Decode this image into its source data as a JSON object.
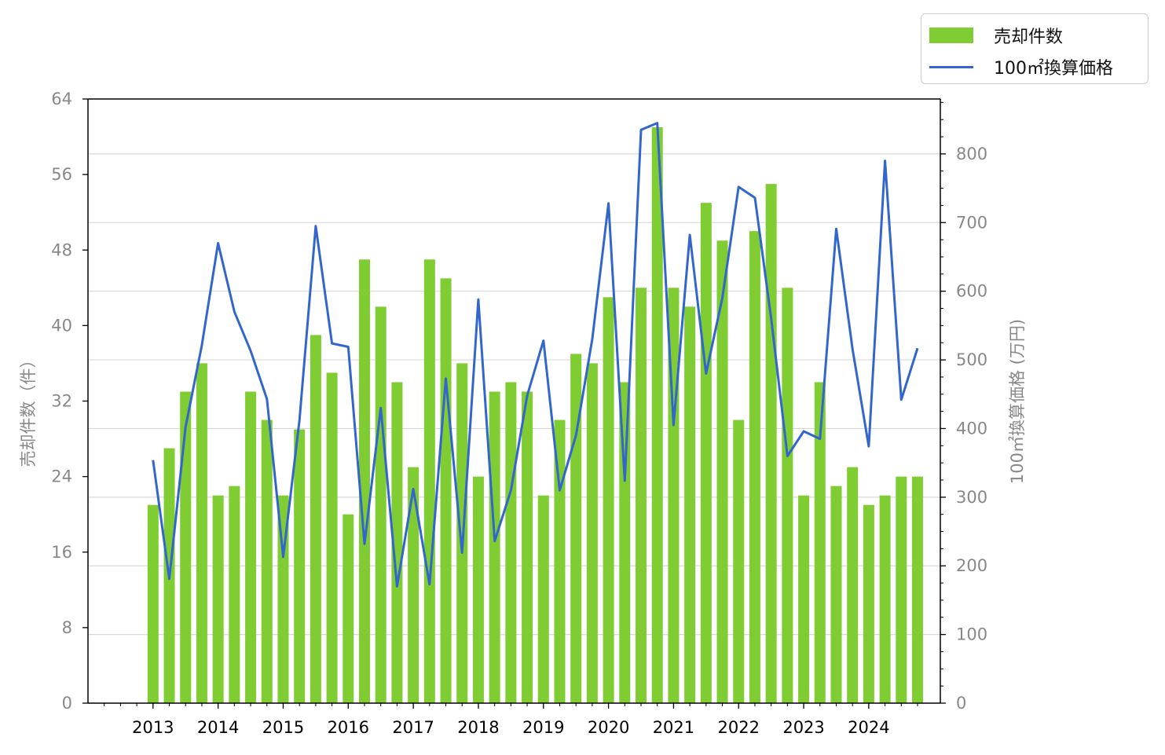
{
  "chart_data": {
    "type": "bar",
    "xlabel": "",
    "ylabel": "売却件数（件）",
    "y2label": "100㎡換算価格 (万円)",
    "ylim": [
      0,
      64
    ],
    "y2lim": [
      0,
      880
    ],
    "yticks": [
      "0",
      "8",
      "16",
      "24",
      "32",
      "40",
      "48",
      "56",
      "64"
    ],
    "y2ticks": [
      "0",
      "100",
      "200",
      "300",
      "400",
      "500",
      "600",
      "700",
      "800"
    ],
    "xticks": [
      "2013",
      "2014",
      "2015",
      "2016",
      "2017",
      "2018",
      "2019",
      "2020",
      "2021",
      "2022",
      "2023",
      "2024"
    ],
    "grid": "horizontal, right axis",
    "legend_position": "top-right outside",
    "colors": {
      "bars": "#80cc33",
      "line": "#3366cc",
      "grid": "#d9d9d9",
      "tick_text_gray": "#888888"
    },
    "x": [
      2013.0,
      2013.25,
      2013.5,
      2013.75,
      2014.0,
      2014.25,
      2014.5,
      2014.75,
      2015.0,
      2015.25,
      2015.5,
      2015.75,
      2016.0,
      2016.25,
      2016.5,
      2016.75,
      2017.0,
      2017.25,
      2017.5,
      2017.75,
      2018.0,
      2018.25,
      2018.5,
      2018.75,
      2019.0,
      2019.25,
      2019.5,
      2019.75,
      2020.0,
      2020.25,
      2020.5,
      2020.75,
      2021.0,
      2021.25,
      2021.5,
      2021.75,
      2022.0,
      2022.25,
      2022.5,
      2022.75,
      2023.0,
      2023.25,
      2023.5,
      2023.75,
      2024.0,
      2024.25,
      2024.5,
      2024.75
    ],
    "series": [
      {
        "name": "売却件数",
        "type": "bar",
        "axis": "left",
        "values": [
          21,
          27,
          33,
          36,
          22,
          23,
          33,
          30,
          22,
          29,
          39,
          35,
          20,
          47,
          42,
          34,
          25,
          47,
          45,
          36,
          24,
          33,
          34,
          33,
          22,
          30,
          37,
          36,
          43,
          34,
          44,
          61,
          44,
          42,
          53,
          49,
          30,
          50,
          55,
          44,
          22,
          34,
          23,
          25,
          21,
          22,
          24,
          24
        ]
      },
      {
        "name": "100㎡換算価格",
        "type": "line",
        "axis": "right",
        "values": [
          354,
          181,
          402,
          521,
          670,
          570,
          513,
          443,
          213,
          412,
          695,
          524,
          519,
          232,
          430,
          170,
          312,
          173,
          473,
          219,
          588,
          236,
          310,
          448,
          528,
          310,
          390,
          530,
          728,
          324,
          835,
          845,
          405,
          682,
          480,
          590,
          752,
          736,
          560,
          360,
          396,
          385,
          691,
          516,
          374,
          790,
          442,
          517
        ]
      }
    ]
  }
}
